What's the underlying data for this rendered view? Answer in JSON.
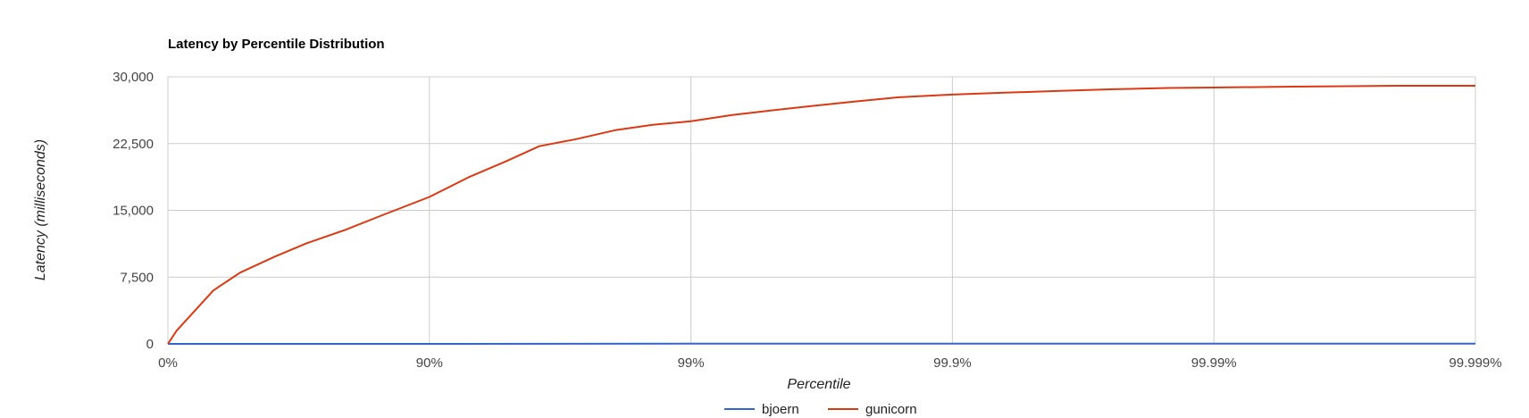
{
  "chart_data": {
    "type": "line",
    "title": "Latency by Percentile Distribution",
    "xlabel": "Percentile",
    "ylabel": "Latency (milliseconds)",
    "x_scale": "log-inverse-percentile",
    "x_ticks": [
      "0%",
      "90%",
      "99%",
      "99.9%",
      "99.99%",
      "99.999%"
    ],
    "x_range_percentile": [
      0,
      99.999
    ],
    "y_ticks": [
      "0",
      "7,500",
      "15,000",
      "22,500",
      "30,000"
    ],
    "ylim": [
      0,
      30000
    ],
    "grid": true,
    "legend_position": "bottom",
    "series": [
      {
        "name": "bjoern",
        "color": "#3366cc",
        "x_percentile": [
          0,
          90,
          99,
          99.9,
          99.99,
          99.999
        ],
        "y": [
          0,
          0,
          20,
          20,
          20,
          20
        ]
      },
      {
        "name": "gunicorn",
        "color": "#dc3912",
        "x_percentile": [
          0,
          7.5,
          33,
          47,
          61,
          70.5,
          79,
          85,
          90,
          92.9,
          94.9,
          96.2,
          97.25,
          98.05,
          98.6,
          99,
          99.3,
          99.5,
          99.65,
          99.76,
          99.84,
          99.9,
          99.935,
          99.96,
          99.975,
          99.985,
          99.99,
          99.995,
          99.998,
          99.999
        ],
        "y": [
          0,
          1500,
          6000,
          8000,
          9800,
          11300,
          12800,
          14500,
          16500,
          18700,
          20500,
          22200,
          23000,
          24000,
          24600,
          25000,
          25700,
          26200,
          26700,
          27200,
          27700,
          28000,
          28200,
          28400,
          28600,
          28750,
          28800,
          28900,
          29000,
          29000
        ]
      }
    ]
  }
}
